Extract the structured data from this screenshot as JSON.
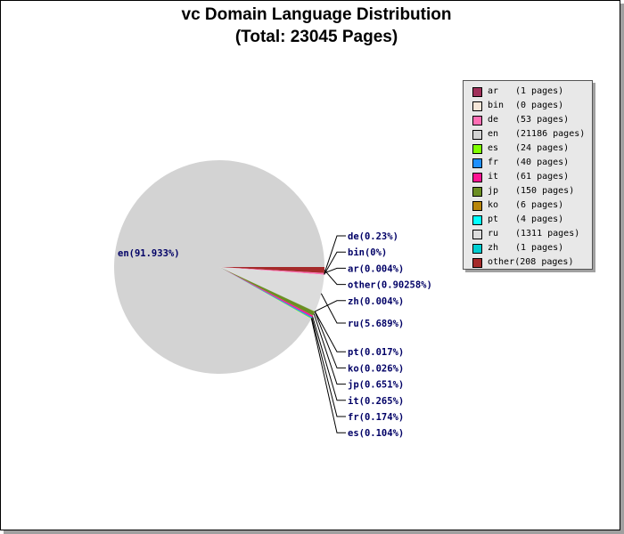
{
  "title_lines": [
    "vc Domain Language Distribution",
    "(Total: 23045 Pages)"
  ],
  "chart_data": {
    "type": "pie",
    "title": "vc Domain Language Distribution (Total: 23045 Pages)",
    "legend_placement": "top-right",
    "slices": [
      {
        "code": "ar",
        "pages": 1,
        "pages_label": "(1 pages)",
        "pct_label": "ar(0.004%)",
        "color": "#a0305a"
      },
      {
        "code": "bin",
        "pages": 0,
        "pages_label": "(0 pages)",
        "pct_label": "bin(0%)",
        "color": "#f5e6d8"
      },
      {
        "code": "de",
        "pages": 53,
        "pages_label": "(53 pages)",
        "pct_label": "de(0.23%)",
        "color": "#ff6eb4"
      },
      {
        "code": "en",
        "pages": 21186,
        "pages_label": "(21186 pages)",
        "pct_label": "en(91.933%)",
        "color": "#d3d3d3"
      },
      {
        "code": "es",
        "pages": 24,
        "pages_label": "(24 pages)",
        "pct_label": "es(0.104%)",
        "color": "#7fff00"
      },
      {
        "code": "fr",
        "pages": 40,
        "pages_label": "(40 pages)",
        "pct_label": "fr(0.174%)",
        "color": "#1e90ff"
      },
      {
        "code": "it",
        "pages": 61,
        "pages_label": "(61 pages)",
        "pct_label": "it(0.265%)",
        "color": "#ff1493"
      },
      {
        "code": "jp",
        "pages": 150,
        "pages_label": "(150 pages)",
        "pct_label": "jp(0.651%)",
        "color": "#6b8e23"
      },
      {
        "code": "ko",
        "pages": 6,
        "pages_label": "(6 pages)",
        "pct_label": "ko(0.026%)",
        "color": "#b8860b"
      },
      {
        "code": "pt",
        "pages": 4,
        "pages_label": "(4 pages)",
        "pct_label": "pt(0.017%)",
        "color": "#00ffff"
      },
      {
        "code": "ru",
        "pages": 1311,
        "pages_label": "(1311 pages)",
        "pct_label": "ru(5.689%)",
        "color": "#dcdcdc"
      },
      {
        "code": "zh",
        "pages": 1,
        "pages_label": "(1 pages)",
        "pct_label": "zh(0.004%)",
        "color": "#00ced1"
      },
      {
        "code": "other",
        "pages": 208,
        "pages_label": "(208 pages)",
        "pct_label": "other(0.90258%)",
        "color": "#a52a2a"
      }
    ],
    "slice_order": [
      "other",
      "ar",
      "de",
      "bin",
      "ru",
      "zh",
      "pt",
      "ko",
      "jp",
      "it",
      "fr",
      "es",
      "en"
    ],
    "right_label_order": [
      "de",
      "bin",
      "ar",
      "other",
      "zh",
      "ru",
      "pt",
      "ko",
      "jp",
      "it",
      "fr",
      "es"
    ],
    "left_label": "en"
  }
}
